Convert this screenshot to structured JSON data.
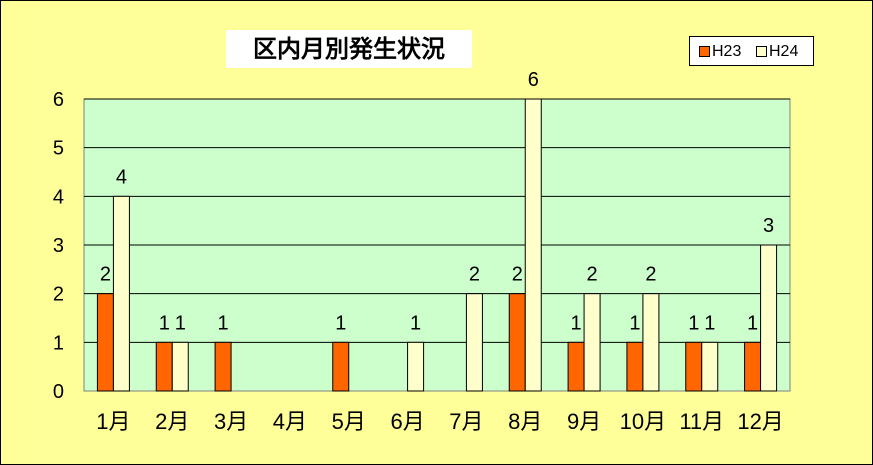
{
  "chart_data": {
    "type": "bar",
    "title": "区内月別発生状況",
    "categories": [
      "1月",
      "2月",
      "3月",
      "4月",
      "5月",
      "6月",
      "7月",
      "8月",
      "9月",
      "10月",
      "11月",
      "12月"
    ],
    "series": [
      {
        "name": "H23",
        "values": [
          2,
          1,
          1,
          0,
          1,
          0,
          0,
          2,
          1,
          1,
          1,
          1
        ],
        "color": "#ff6600"
      },
      {
        "name": "H24",
        "values": [
          4,
          1,
          0,
          0,
          0,
          1,
          2,
          6,
          2,
          2,
          1,
          3
        ],
        "color": "#ffffcc"
      }
    ],
    "ylim": [
      0,
      6
    ],
    "yticks": [
      "0",
      "1",
      "2",
      "3",
      "4",
      "5",
      "6"
    ],
    "xlabel": "",
    "ylabel": "",
    "grid": true,
    "legend": "top-right",
    "colors": {
      "plot_background": "#ccffcc",
      "chart_background": "#ffff99",
      "gridline": "#000000"
    }
  }
}
